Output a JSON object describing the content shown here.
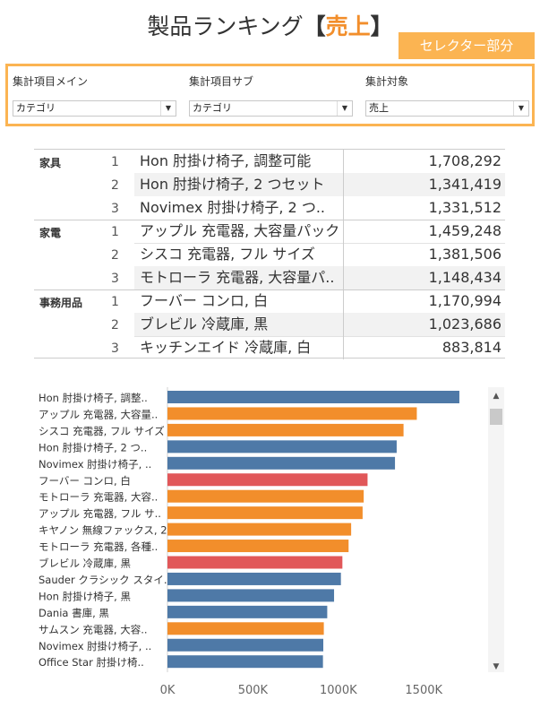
{
  "title": {
    "prefix": "製品ランキング",
    "open": "【",
    "measure": "売上",
    "close": "】"
  },
  "selector_tag": "セレクター部分",
  "selectors": [
    {
      "label": "集計項目メイン",
      "value": "カテゴリ"
    },
    {
      "label": "集計項目サブ",
      "value": "カテゴリ"
    },
    {
      "label": "集計対象",
      "value": "売上"
    }
  ],
  "table": {
    "groups": [
      {
        "name": "家具",
        "rows": [
          {
            "rank": "1",
            "name": "Hon 肘掛け椅子, 調整可能",
            "value": "1,708,292"
          },
          {
            "rank": "2",
            "name": "Hon 肘掛け椅子, 2 つセット",
            "value": "1,341,419"
          },
          {
            "rank": "3",
            "name": "Novimex 肘掛け椅子, 2 つ..",
            "value": "1,331,512"
          }
        ]
      },
      {
        "name": "家電",
        "rows": [
          {
            "rank": "1",
            "name": "アップル 充電器, 大容量パック",
            "value": "1,459,248"
          },
          {
            "rank": "2",
            "name": "シスコ 充電器, フル サイズ",
            "value": "1,381,506"
          },
          {
            "rank": "3",
            "name": "モトローラ 充電器, 大容量パ..",
            "value": "1,148,434"
          }
        ]
      },
      {
        "name": "事務用品",
        "rows": [
          {
            "rank": "1",
            "name": "フーバー コンロ, 白",
            "value": "1,170,994"
          },
          {
            "rank": "2",
            "name": "ブレビル 冷蔵庫, 黒",
            "value": "1,023,686"
          },
          {
            "rank": "3",
            "name": "キッチンエイド 冷蔵庫, 白",
            "value": "883,814"
          }
        ]
      }
    ]
  },
  "colors": {
    "furniture": "#4e79a7",
    "electronics": "#f28e2b",
    "office": "#e15759",
    "accent": "#fbb452"
  },
  "chart_data": {
    "type": "bar",
    "orientation": "horizontal",
    "categories": [
      "Hon 肘掛け椅子, 調整..",
      "アップル 充電器, 大容量..",
      "シスコ 充電器, フル サイズ",
      "Hon 肘掛け椅子, 2 つ..",
      "Novimex 肘掛け椅子, ..",
      "フーバー コンロ, 白",
      "モトローラ 充電器, 大容..",
      "アップル 充電器, フル サ..",
      "キヤノン 無線ファックス, 2..",
      "モトローラ 充電器, 各種..",
      "ブレビル 冷蔵庫, 黒",
      "Sauder クラシック スタイ..",
      "Hon 肘掛け椅子, 黒",
      "Dania 書庫, 黒",
      "サムスン 充電器, 大容..",
      "Novimex 肘掛け椅子, ..",
      "Office Star 肘掛け椅.."
    ],
    "values": [
      1708292,
      1459248,
      1381506,
      1341419,
      1331512,
      1170994,
      1148434,
      1142000,
      1075000,
      1060000,
      1023686,
      1015000,
      975000,
      935000,
      915000,
      912000,
      910000
    ],
    "groups": [
      "furniture",
      "electronics",
      "electronics",
      "furniture",
      "furniture",
      "office",
      "electronics",
      "electronics",
      "electronics",
      "electronics",
      "office",
      "furniture",
      "furniture",
      "furniture",
      "electronics",
      "furniture",
      "furniture"
    ],
    "xlim": [
      0,
      1850000
    ],
    "xticks": [
      0,
      500000,
      1000000,
      1500000
    ],
    "xtick_labels": [
      "0K",
      "500K",
      "1000K",
      "1500K"
    ],
    "grid": false
  }
}
